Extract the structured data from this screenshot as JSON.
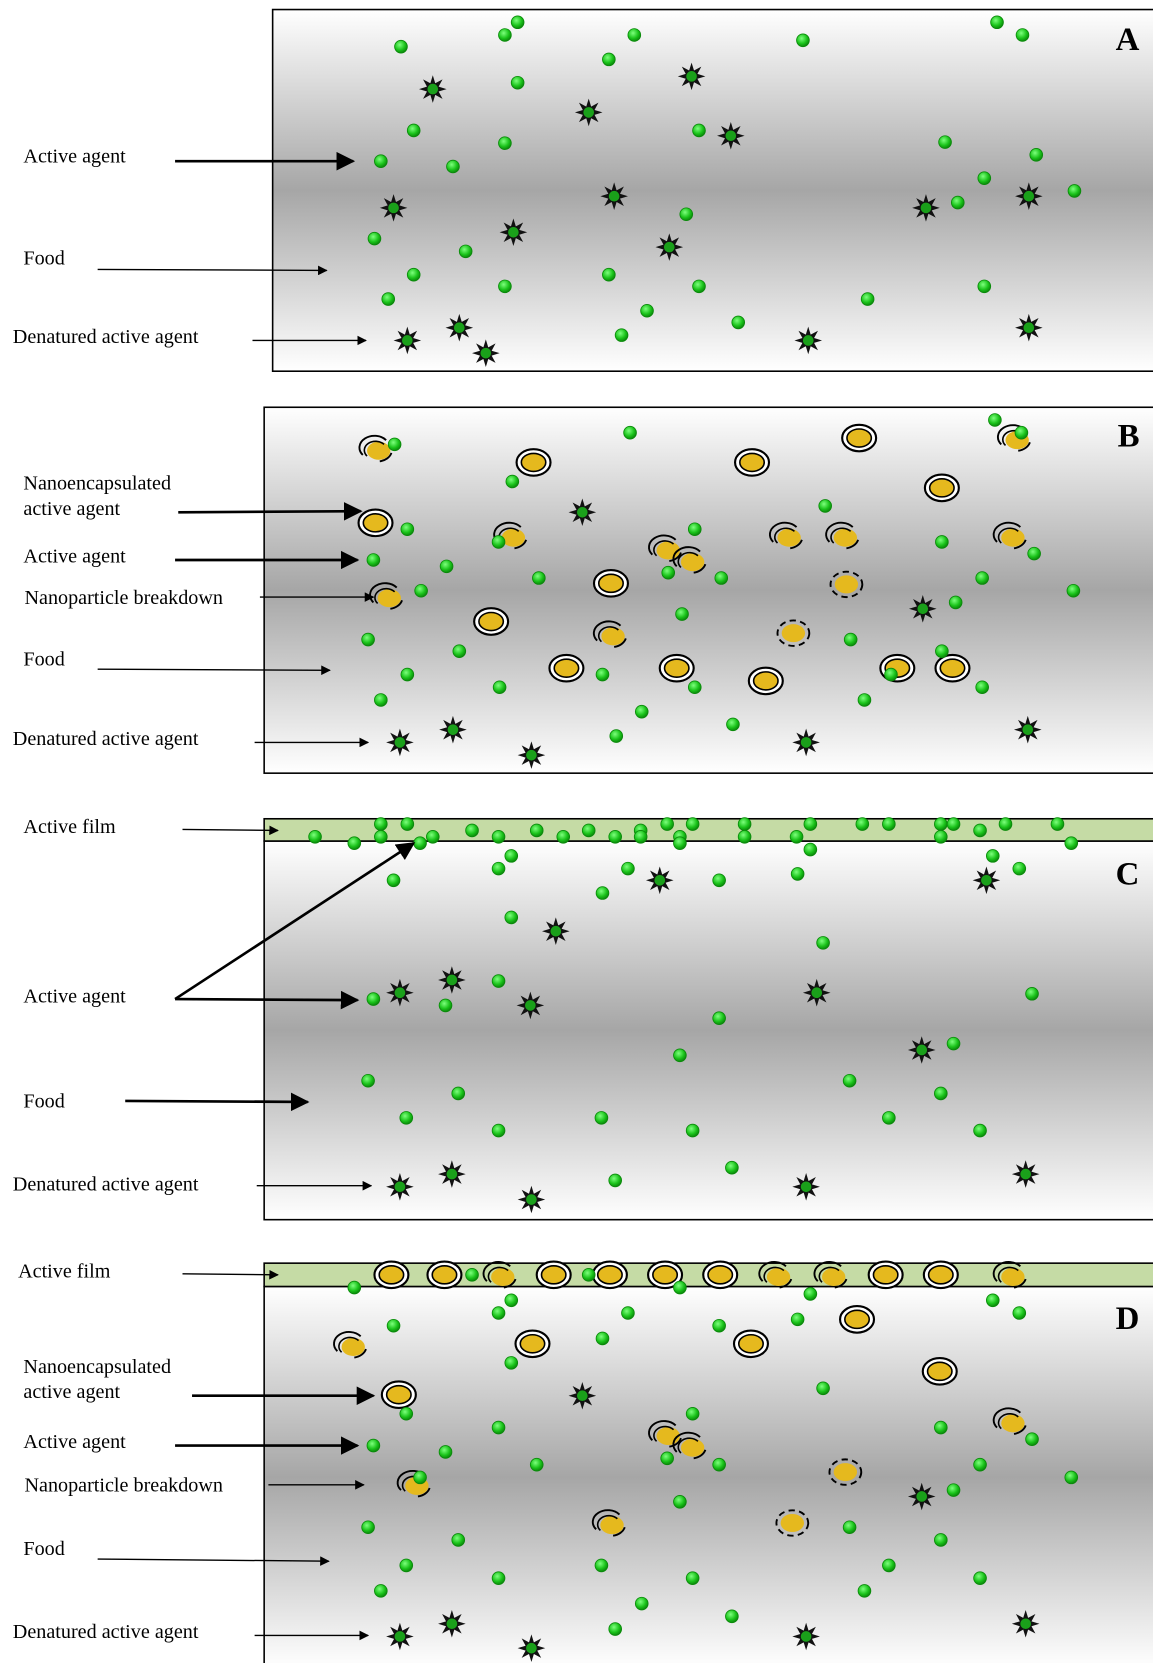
{
  "panels": [
    {
      "letter": "A",
      "labels": [
        [
          "Active agent"
        ],
        [
          "Food"
        ],
        [
          "Denatured active agent"
        ]
      ]
    },
    {
      "letter": "B",
      "labels": [
        [
          "Nanoencapsulated",
          "active agent"
        ],
        [
          "Active agent"
        ],
        [
          "Nanoparticle breakdown"
        ],
        [
          "Food"
        ],
        [
          "Denatured active agent"
        ]
      ]
    },
    {
      "letter": "C",
      "labels": [
        [
          "Active film"
        ],
        [
          "Active agent"
        ],
        [
          "Food"
        ],
        [
          "Denatured active agent"
        ]
      ]
    },
    {
      "letter": "D",
      "labels": [
        [
          "Active film"
        ],
        [
          "Nanoencapsulated",
          "active agent"
        ],
        [
          "Active agent"
        ],
        [
          "Nanoparticle breakdown"
        ],
        [
          "Food"
        ],
        [
          "Denatured active agent"
        ]
      ]
    }
  ]
}
